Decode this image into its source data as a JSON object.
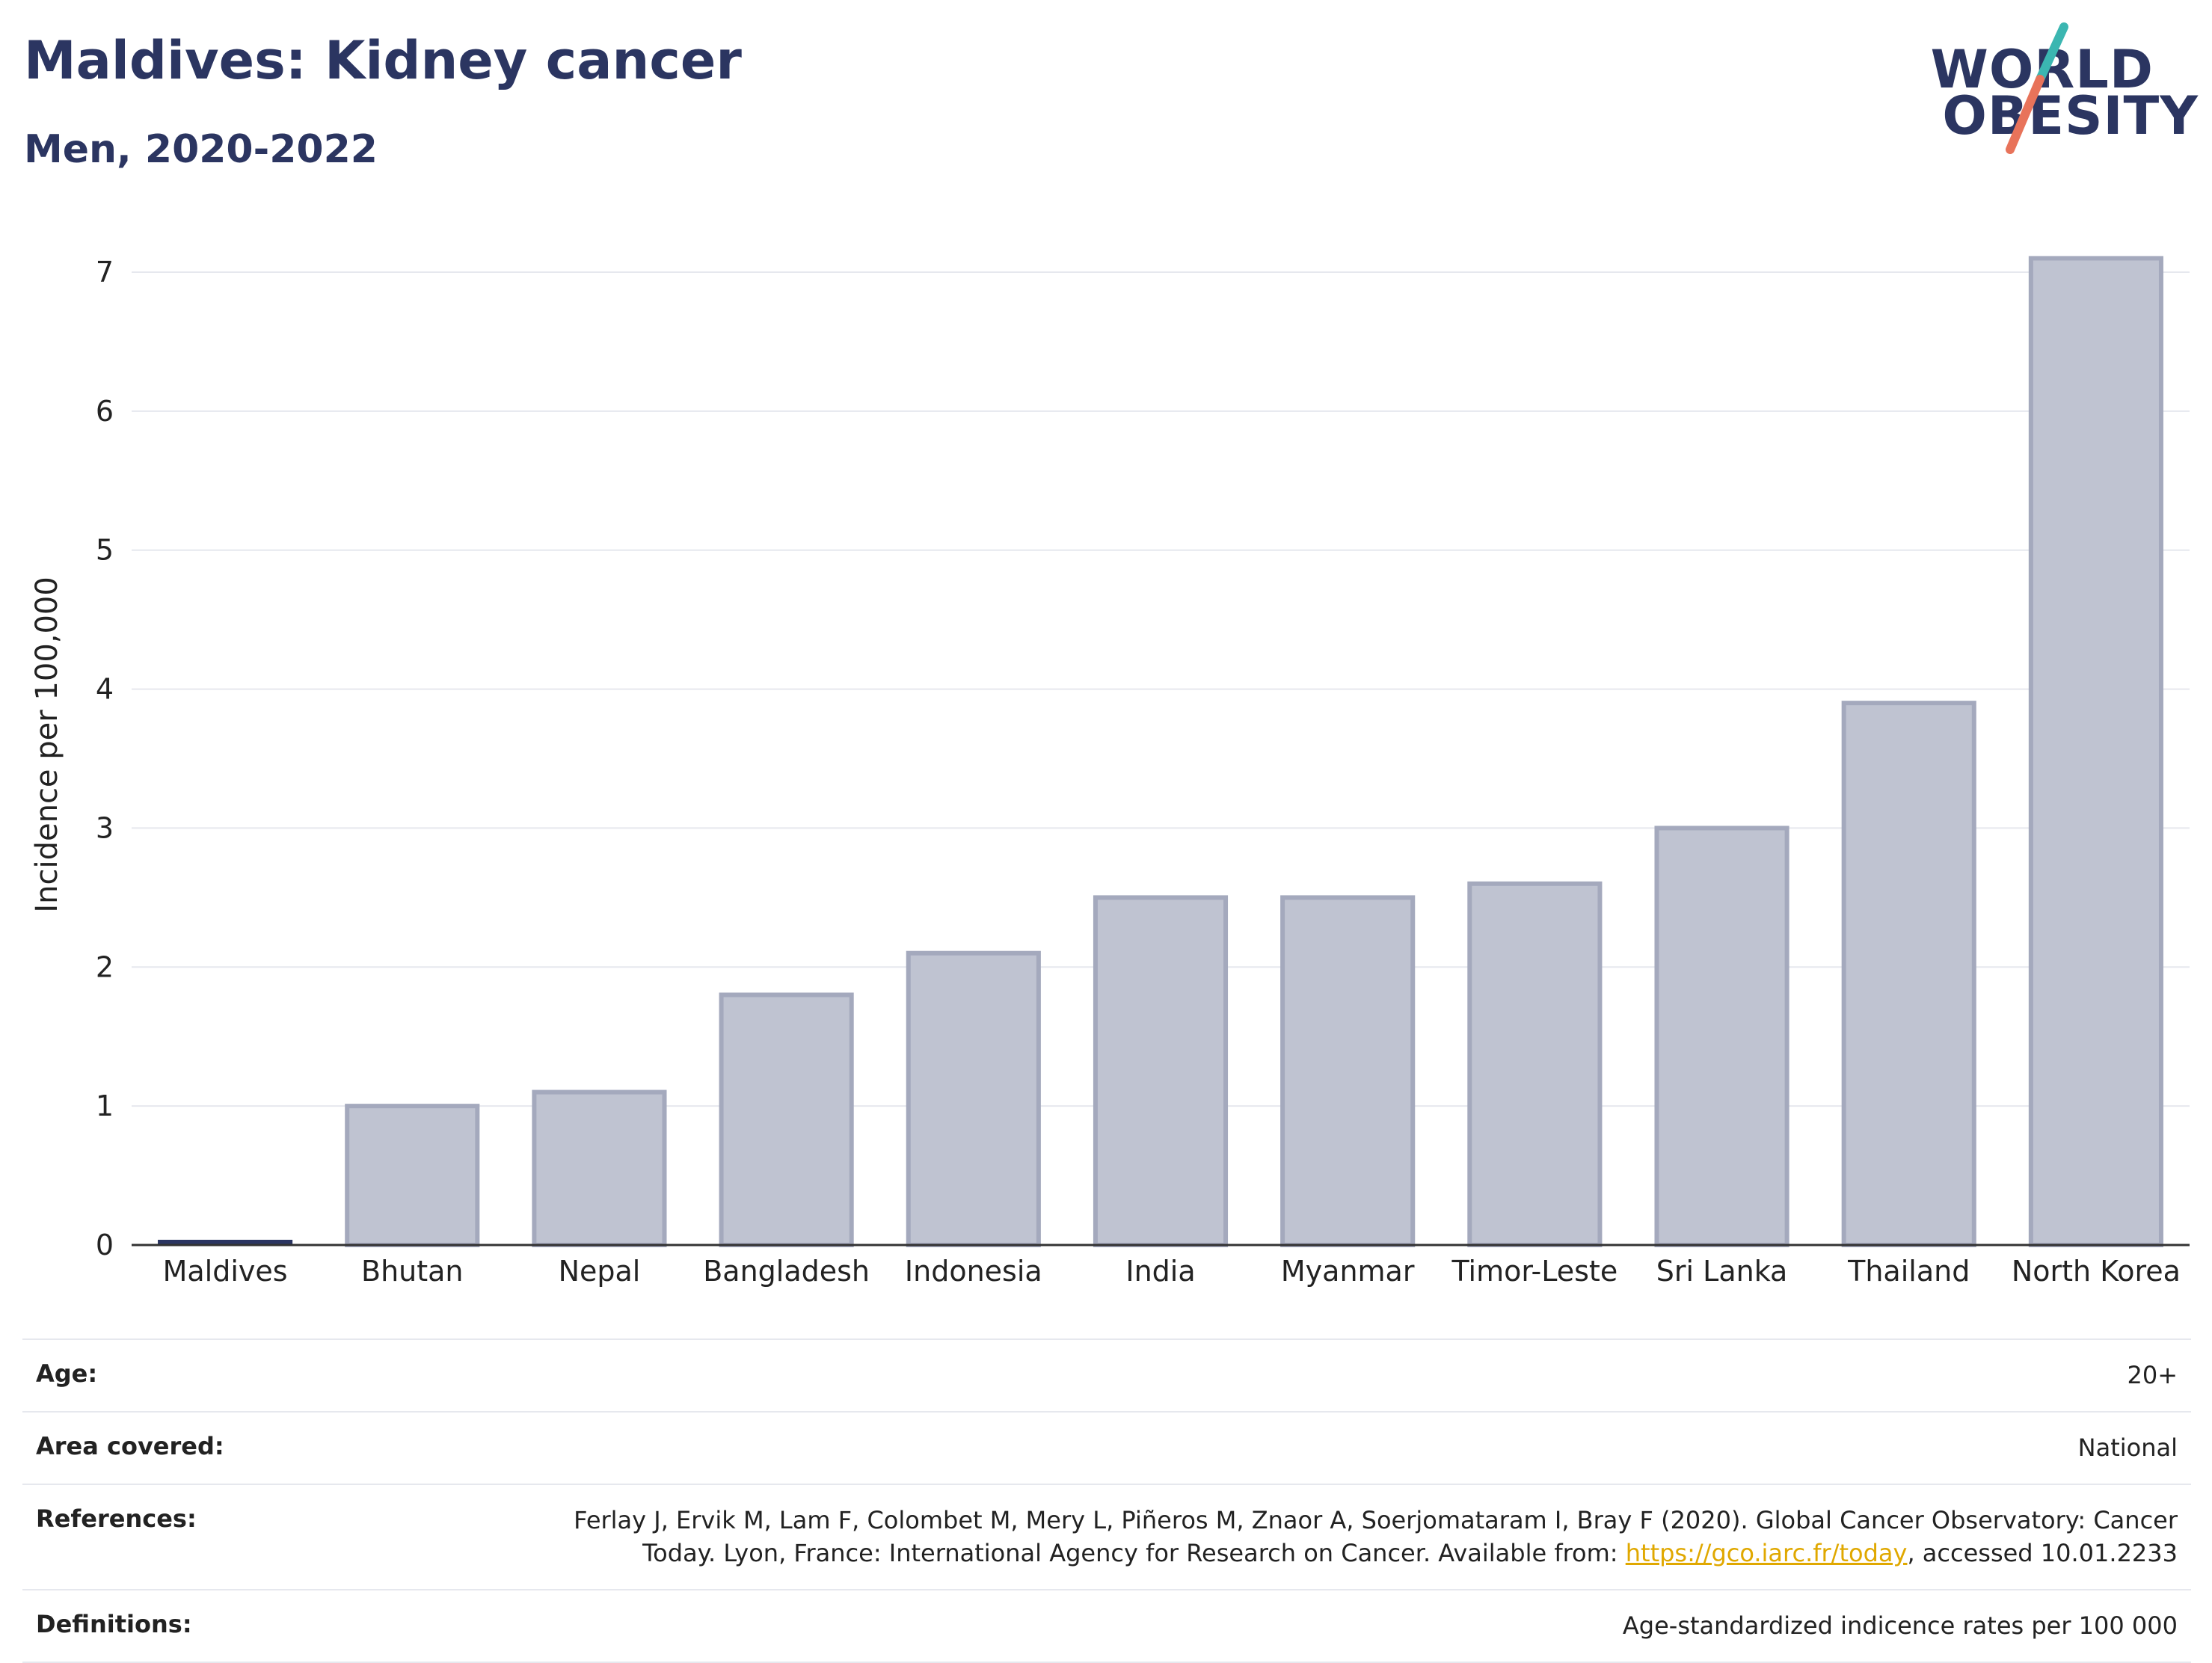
{
  "header": {
    "title": "Maldives: Kidney cancer",
    "subtitle": "Men, 2020-2022"
  },
  "logo": {
    "line1": "WORLD",
    "line2": "OBESITY",
    "colors": {
      "text": "#2b3561",
      "slash_top": "#3bb6b1",
      "slash_bottom": "#e8735a"
    }
  },
  "chart_data": {
    "type": "bar",
    "categories": [
      "Maldives",
      "Bhutan",
      "Nepal",
      "Bangladesh",
      "Indonesia",
      "India",
      "Myanmar",
      "Timor-Leste",
      "Sri Lanka",
      "Thailand",
      "North Korea"
    ],
    "values": [
      0.0,
      1.0,
      1.1,
      1.8,
      2.1,
      2.5,
      2.5,
      2.6,
      3.0,
      3.9,
      7.1
    ],
    "highlight": "Maldives",
    "ylabel": "Incidence per 100,000",
    "ylim": [
      0,
      7.3
    ],
    "yticks": [
      0,
      1,
      2,
      3,
      4,
      5,
      6,
      7
    ],
    "grid": true,
    "colors": {
      "bar_fill": "#bfc3d1",
      "bar_stroke": "#a4a9bd",
      "highlight": "#2b3561"
    }
  },
  "meta": {
    "age": {
      "label": "Age:",
      "value": "20+"
    },
    "area": {
      "label": "Area covered:",
      "value": "National"
    },
    "references": {
      "label": "References:",
      "line1": "Ferlay J, Ervik M, Lam F, Colombet M, Mery L, Piñeros M, Znaor A, Soerjomataram I, Bray F (2020). Global Cancer Observatory: Cancer",
      "line2_pre": "Today. Lyon, France: International Agency for Research on Cancer. Available from: ",
      "link": "https://gco.iarc.fr/today",
      "line2_post": ", accessed 10.01.2233"
    },
    "definitions": {
      "label": "Definitions:",
      "value": "Age-standardized indicence rates per 100 000"
    }
  }
}
